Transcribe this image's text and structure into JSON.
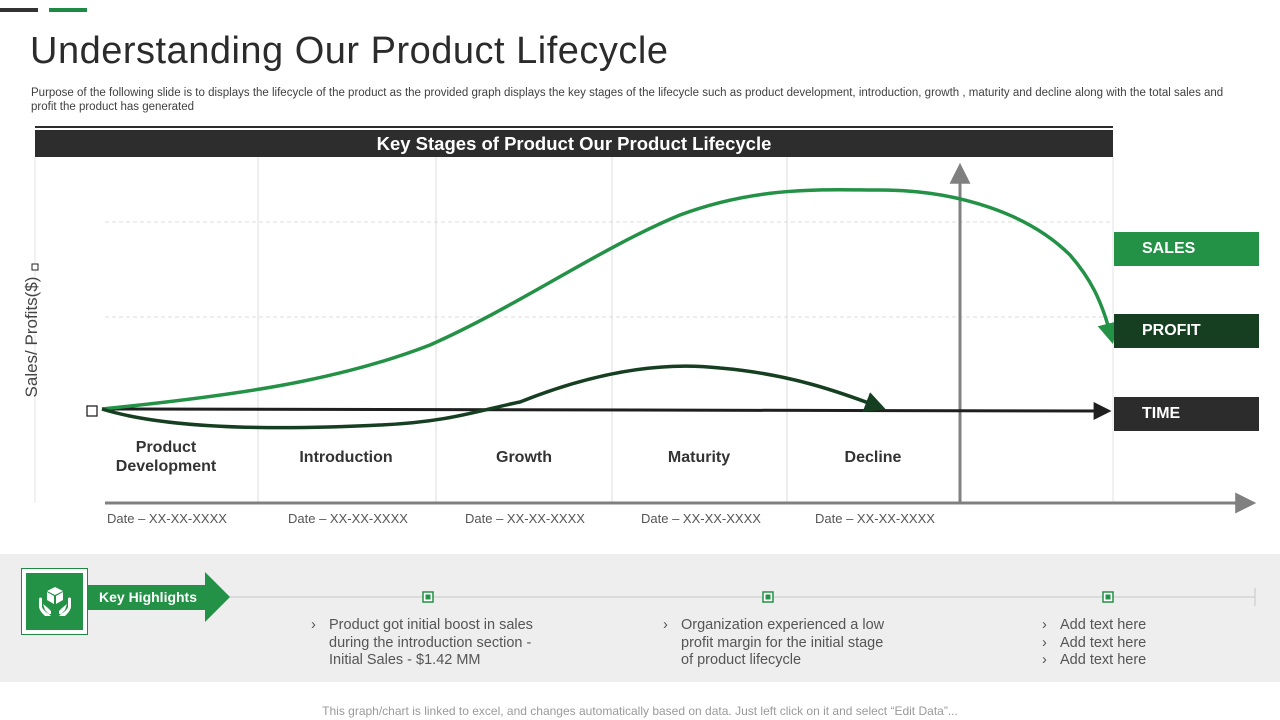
{
  "title": "Understanding Our Product Lifecycle",
  "subtitle": "Purpose of the following slide is to displays the lifecycle of the product as the provided graph displays the key stages of the lifecycle such as product development, introduction, growth , maturity and decline along with the total sales and profit the product has generated",
  "chart": {
    "header": "Key Stages of Product Our Product Lifecycle",
    "y_axis_label": "Sales/ Profits($)",
    "stages": [
      {
        "name": "Product\nDevelopment",
        "date": "Date – XX-XX-XXXX"
      },
      {
        "name": "Introduction",
        "date": "Date – XX-XX-XXXX"
      },
      {
        "name": "Growth",
        "date": "Date – XX-XX-XXXX"
      },
      {
        "name": "Maturity",
        "date": "Date – XX-XX-XXXX"
      },
      {
        "name": "Decline",
        "date": "Date – XX-XX-XXXX"
      }
    ],
    "legend": {
      "sales": "SALES",
      "profit": "PROFIT",
      "time": "TIME"
    }
  },
  "highlights": {
    "label": "Key Highlights",
    "icon": "hands-box-icon",
    "groups": [
      [
        "Product got initial boost in sales during the introduction section - Initial Sales - $1.42 MM"
      ],
      [
        "Organization experienced a low profit margin for the initial stage of product lifecycle"
      ],
      [
        "Add text here",
        "Add text here",
        "Add text here"
      ]
    ]
  },
  "footer": "This graph/chart is linked to excel, and changes automatically based on data. Just left click on it and select “Edit Data”...",
  "colors": {
    "sales": "#239146",
    "profit": "#163f22",
    "time": "#2c2c2c",
    "accent": "#1e8a44"
  }
}
